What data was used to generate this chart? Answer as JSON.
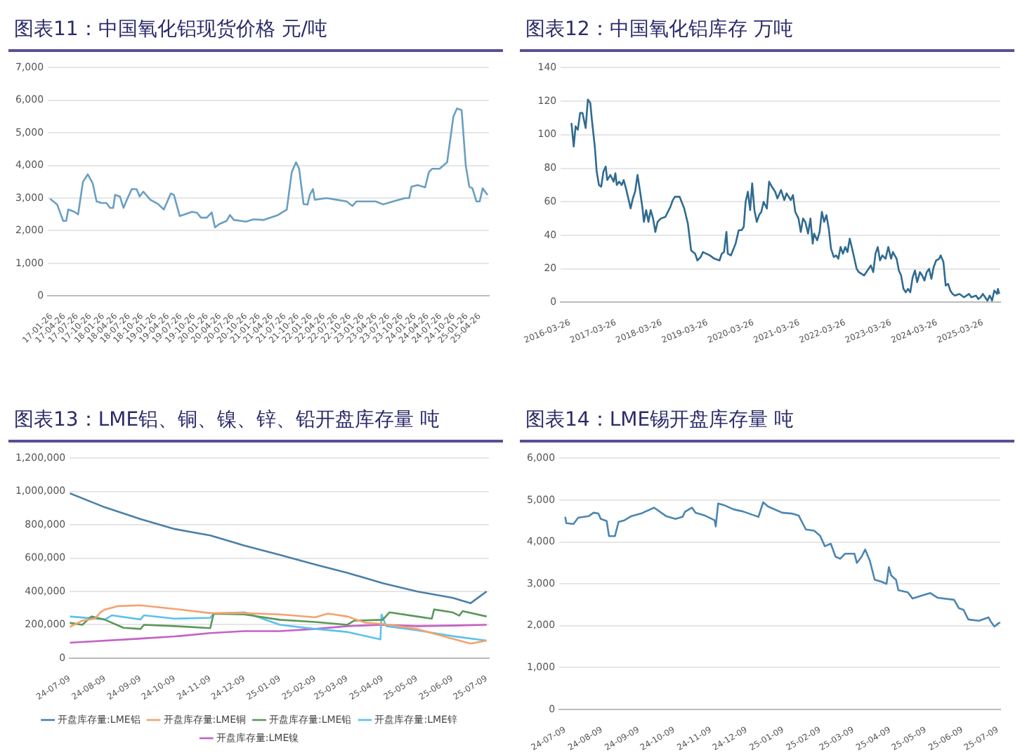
{
  "chart_data": [
    {
      "type": "line",
      "title": "图表11：中国氧化铝现货价格 元/吨",
      "grid": "y",
      "legend": false,
      "marker": "none",
      "line_style": "solid",
      "xlim": [
        "2017-01-01",
        "2025-07-01"
      ],
      "xticks": [
        {
          "value": "2017-01-26",
          "label": "17-01-26"
        },
        {
          "value": "2017-04-26",
          "label": "17-04-26"
        },
        {
          "value": "2017-07-26",
          "label": "17-07-26"
        },
        {
          "value": "2017-10-26",
          "label": "17-10-26"
        },
        {
          "value": "2018-01-26",
          "label": "18-01-26"
        },
        {
          "value": "2018-04-26",
          "label": "18-04-26"
        },
        {
          "value": "2018-07-26",
          "label": "18-07-26"
        },
        {
          "value": "2018-10-26",
          "label": "18-10-26"
        },
        {
          "value": "2019-01-26",
          "label": "19-01-26"
        },
        {
          "value": "2019-04-26",
          "label": "19-04-26"
        },
        {
          "value": "2019-07-26",
          "label": "19-07-26"
        },
        {
          "value": "2019-10-26",
          "label": "19-10-26"
        },
        {
          "value": "2020-01-26",
          "label": "20-01-26"
        },
        {
          "value": "2020-04-26",
          "label": "20-04-26"
        },
        {
          "value": "2020-07-26",
          "label": "20-07-26"
        },
        {
          "value": "2020-10-26",
          "label": "20-10-26"
        },
        {
          "value": "2021-01-26",
          "label": "21-01-26"
        },
        {
          "value": "2021-04-26",
          "label": "21-04-26"
        },
        {
          "value": "2021-07-26",
          "label": "21-07-26"
        },
        {
          "value": "2021-10-26",
          "label": "21-10-26"
        },
        {
          "value": "2022-01-26",
          "label": "22-01-26"
        },
        {
          "value": "2022-04-26",
          "label": "22-04-26"
        },
        {
          "value": "2022-07-26",
          "label": "22-07-26"
        },
        {
          "value": "2022-10-26",
          "label": "22-10-26"
        },
        {
          "value": "2023-01-26",
          "label": "23-01-26"
        },
        {
          "value": "2023-04-26",
          "label": "23-04-26"
        },
        {
          "value": "2023-07-26",
          "label": "23-07-26"
        },
        {
          "value": "2023-10-26",
          "label": "23-10-26"
        },
        {
          "value": "2024-01-26",
          "label": "24-01-26"
        },
        {
          "value": "2024-04-26",
          "label": "24-04-26"
        },
        {
          "value": "2024-07-26",
          "label": "24-07-26"
        },
        {
          "value": "2024-10-26",
          "label": "24-10-26"
        },
        {
          "value": "2025-01-26",
          "label": "25-01-26"
        },
        {
          "value": "2025-04-26",
          "label": "25-04-26"
        }
      ],
      "ylim": [
        0,
        7000
      ],
      "yticks": [
        0,
        {
          "value": 1000,
          "label": "1,000"
        },
        {
          "value": 2000,
          "label": "2,000"
        },
        {
          "value": 3000,
          "label": "3,000"
        },
        {
          "value": 4000,
          "label": "4,000"
        },
        {
          "value": 5000,
          "label": "5,000"
        },
        {
          "value": 6000,
          "label": "6,000"
        },
        {
          "value": 7000,
          "label": "7,000"
        }
      ],
      "series": [
        {
          "color": "#6a9fc2",
          "x": [
            "2017-01-17",
            "2017-03-08",
            "2017-04-19",
            "2017-05-10",
            "2017-05-25",
            "2017-07-07",
            "2017-08-02",
            "2017-09-05",
            "2017-10-09",
            "2017-11-13",
            "2017-12-10",
            "2018-01-14",
            "2018-02-17",
            "2018-03-15",
            "2018-04-06",
            "2018-04-19",
            "2018-05-23",
            "2018-06-17",
            "2018-07-11",
            "2018-08-15",
            "2018-09-18",
            "2018-10-09",
            "2018-11-04",
            "2018-12-23",
            "2019-02-15",
            "2019-03-28",
            "2019-05-16",
            "2019-06-07",
            "2019-07-18",
            "2019-08-21",
            "2019-10-13",
            "2019-11-17",
            "2019-12-14",
            "2020-01-24",
            "2020-02-28",
            "2020-03-22",
            "2020-04-19",
            "2020-06-11",
            "2020-07-05",
            "2020-08-02",
            "2020-10-26",
            "2020-12-18",
            "2021-02-25",
            "2021-06-08",
            "2021-08-09",
            "2021-09-13",
            "2021-10-13",
            "2021-11-04",
            "2021-12-05",
            "2022-01-02",
            "2022-01-18",
            "2022-02-09",
            "2022-02-22",
            "2022-05-17",
            "2022-07-25",
            "2022-10-04",
            "2022-11-14",
            "2022-12-12",
            "2023-04-26",
            "2023-06-18",
            "2023-09-13",
            "2023-11-21",
            "2023-12-18",
            "2024-01-03",
            "2024-02-16",
            "2024-04-08",
            "2024-05-05",
            "2024-05-27",
            "2024-07-19",
            "2024-09-10",
            "2024-10-24",
            "2024-11-18",
            "2024-12-21",
            "2025-01-19",
            "2025-02-13",
            "2025-03-07",
            "2025-04-04",
            "2025-04-27",
            "2025-05-18",
            "2025-06-21"
          ],
          "values": [
            2980,
            2800,
            2300,
            2300,
            2650,
            2580,
            2500,
            3500,
            3730,
            3450,
            2900,
            2850,
            2850,
            2700,
            2700,
            3100,
            3050,
            2700,
            2950,
            3280,
            3270,
            3050,
            3200,
            2950,
            2820,
            2650,
            3140,
            3100,
            2450,
            2500,
            2580,
            2550,
            2400,
            2400,
            2560,
            2100,
            2200,
            2300,
            2480,
            2330,
            2280,
            2350,
            2330,
            2480,
            2650,
            3800,
            4100,
            3900,
            2820,
            2800,
            3100,
            3280,
            2950,
            3000,
            2950,
            2900,
            2760,
            2900,
            2900,
            2810,
            2920,
            3000,
            3000,
            3350,
            3400,
            3330,
            3800,
            3900,
            3900,
            4100,
            5500,
            5750,
            5700,
            4000,
            3350,
            3300,
            2900,
            2900,
            3300,
            3100
          ]
        }
      ]
    },
    {
      "type": "line",
      "title": "图表12：中国氧化铝库存 万吨",
      "grid": "y",
      "legend": false,
      "marker": "none",
      "line_style": "solid",
      "xlim": [
        "2016-01-12",
        "2025-08-12"
      ],
      "xticks": [
        "2016-03-26",
        "2017-03-26",
        "2018-03-26",
        "2019-03-26",
        "2020-03-26",
        "2021-03-26",
        "2022-03-26",
        "2023-03-26",
        "2024-03-26",
        "2025-03-26"
      ],
      "ylim": [
        0,
        140
      ],
      "yticks": [
        0,
        20,
        40,
        60,
        80,
        100,
        120,
        140
      ],
      "series": [
        {
          "color": "#2f6b90",
          "x": [
            "2016-04-06",
            "2016-04-24",
            "2016-05-09",
            "2016-05-27",
            "2016-06-14",
            "2016-07-03",
            "2016-07-28",
            "2016-08-15",
            "2016-09-03",
            "2016-09-17",
            "2016-10-09",
            "2016-10-24",
            "2016-11-11",
            "2016-11-29",
            "2016-12-17",
            "2017-01-04",
            "2017-01-16",
            "2017-02-10",
            "2017-03-08",
            "2017-03-22",
            "2017-04-02",
            "2017-04-21",
            "2017-05-12",
            "2017-05-27",
            "2017-06-14",
            "2017-07-03",
            "2017-07-21",
            "2017-08-08",
            "2017-08-26",
            "2017-09-14",
            "2017-10-05",
            "2017-10-24",
            "2017-11-04",
            "2017-11-22",
            "2017-12-10",
            "2017-12-28",
            "2018-01-16",
            "2018-02-03",
            "2018-02-21",
            "2018-03-19",
            "2018-04-24",
            "2018-06-03",
            "2018-06-22",
            "2018-07-10",
            "2018-08-15",
            "2018-09-21",
            "2018-10-20",
            "2018-11-15",
            "2018-12-17",
            "2019-01-04",
            "2019-01-30",
            "2019-02-17",
            "2019-04-13",
            "2019-05-20",
            "2019-06-29",
            "2019-07-17",
            "2019-08-04",
            "2019-08-23",
            "2019-09-03",
            "2019-09-28",
            "2019-11-04",
            "2019-11-29",
            "2019-12-21",
            "2020-01-08",
            "2020-01-23",
            "2020-02-10",
            "2020-02-28",
            "2020-03-15",
            "2020-04-02",
            "2020-04-21",
            "2020-05-09",
            "2020-05-27",
            "2020-06-14",
            "2020-07-10",
            "2020-07-28",
            "2020-08-19",
            "2020-09-14",
            "2020-10-02",
            "2020-10-31",
            "2020-11-26",
            "2020-12-14",
            "2021-01-16",
            "2021-02-03",
            "2021-02-21",
            "2021-03-19",
            "2021-04-06",
            "2021-04-24",
            "2021-05-12",
            "2021-06-03",
            "2021-06-22",
            "2021-07-10",
            "2021-07-21",
            "2021-08-15",
            "2021-09-03",
            "2021-09-21",
            "2021-10-09",
            "2021-10-27",
            "2021-11-15",
            "2021-12-03",
            "2021-12-25",
            "2022-01-12",
            "2022-01-30",
            "2022-02-17",
            "2022-03-08",
            "2022-03-26",
            "2022-04-13",
            "2022-05-01",
            "2022-05-20",
            "2022-06-25",
            "2022-07-13",
            "2022-08-23",
            "2022-09-28",
            "2022-10-16",
            "2022-11-04",
            "2022-11-22",
            "2022-12-10",
            "2022-12-28",
            "2023-01-16",
            "2023-02-10",
            "2023-03-04",
            "2023-03-26",
            "2023-04-10",
            "2023-05-09",
            "2023-05-27",
            "2023-06-14",
            "2023-07-03",
            "2023-07-21",
            "2023-08-08",
            "2023-08-26",
            "2023-09-14",
            "2023-10-02",
            "2023-10-20",
            "2023-11-11",
            "2023-11-29",
            "2023-12-17",
            "2024-01-04",
            "2024-01-23",
            "2024-02-10",
            "2024-02-28",
            "2024-03-19",
            "2024-04-13",
            "2024-04-24",
            "2024-05-16",
            "2024-06-03",
            "2024-06-22",
            "2024-07-10",
            "2024-07-28",
            "2024-08-15",
            "2024-09-21",
            "2024-10-27",
            "2024-12-06",
            "2024-12-25",
            "2025-01-30",
            "2025-02-17",
            "2025-03-08",
            "2025-03-26",
            "2025-04-13",
            "2025-05-01",
            "2025-05-20",
            "2025-06-07",
            "2025-06-25",
            "2025-07-17",
            "2025-07-24",
            "2025-08-04"
          ],
          "values": [
            107,
            93,
            105,
            103,
            113,
            113,
            104,
            121,
            119,
            108,
            93,
            78,
            70,
            69,
            78,
            81,
            73,
            76,
            72,
            77,
            70,
            72,
            70,
            73,
            68,
            62,
            56,
            62,
            66,
            76,
            66,
            56,
            48,
            55,
            48,
            55,
            50,
            42,
            48,
            50,
            51,
            57,
            61,
            63,
            63,
            56,
            47,
            31,
            29,
            25,
            27,
            30,
            28,
            26,
            25,
            29,
            30,
            42,
            29,
            28,
            35,
            43,
            43,
            45,
            60,
            66,
            55,
            71,
            55,
            48,
            52,
            54,
            60,
            56,
            72,
            69,
            66,
            62,
            67,
            61,
            65,
            61,
            64,
            54,
            50,
            42,
            50,
            48,
            41,
            50,
            35,
            41,
            37,
            42,
            54,
            48,
            52,
            44,
            32,
            27,
            28,
            26,
            33,
            29,
            33,
            30,
            38,
            32,
            20,
            18,
            16,
            20,
            22,
            18,
            29,
            33,
            25,
            28,
            26,
            33,
            26,
            30,
            26,
            19,
            16,
            8,
            6,
            8,
            6,
            15,
            19,
            12,
            18,
            16,
            13,
            18,
            20,
            14,
            21,
            25,
            26,
            28,
            24,
            10,
            11,
            7,
            5,
            4,
            5,
            3,
            5,
            3,
            4,
            2,
            3,
            5,
            3,
            1,
            4,
            1,
            7,
            5,
            8,
            5
          ]
        }
      ]
    },
    {
      "type": "line",
      "title": "图表13：LME铝、铜、镍、锌、铅开盘库存量 吨",
      "grid": "y",
      "legend": "bottom",
      "marker": "none",
      "line_style": "solid",
      "xlim": [
        "2024-07-09",
        "2025-07-11"
      ],
      "xticks": [
        {
          "value": "2024-07-09",
          "label": "24-07-09"
        },
        {
          "value": "2024-08-09",
          "label": "24-08-09"
        },
        {
          "value": "2024-09-09",
          "label": "24-09-09"
        },
        {
          "value": "2024-10-09",
          "label": "24-10-09"
        },
        {
          "value": "2024-11-09",
          "label": "24-11-09"
        },
        {
          "value": "2024-12-09",
          "label": "24-12-09"
        },
        {
          "value": "2025-01-09",
          "label": "25-01-09"
        },
        {
          "value": "2025-02-09",
          "label": "25-02-09"
        },
        {
          "value": "2025-03-09",
          "label": "25-03-09"
        },
        {
          "value": "2025-04-09",
          "label": "25-04-09"
        },
        {
          "value": "2025-05-09",
          "label": "25-05-09"
        },
        {
          "value": "2025-06-09",
          "label": "25-06-09"
        },
        {
          "value": "2025-07-09",
          "label": "25-07-09"
        }
      ],
      "ylim": [
        0,
        1200000
      ],
      "yticks": [
        0,
        {
          "value": 200000,
          "label": "200,000"
        },
        {
          "value": 400000,
          "label": "400,000"
        },
        {
          "value": 600000,
          "label": "600,000"
        },
        {
          "value": 800000,
          "label": "800,000"
        },
        {
          "value": 1000000,
          "label": "1,000,000"
        },
        {
          "value": 1200000,
          "label": "1,200,000"
        }
      ],
      "series": [
        {
          "name": "开盘库存量:LME铝",
          "color": "#4a80a8",
          "x": [
            "2024-07-09",
            "2024-08-09",
            "2024-09-09",
            "2024-10-09",
            "2024-11-09",
            "2024-12-09",
            "2025-01-09",
            "2025-02-09",
            "2025-03-09",
            "2025-04-09",
            "2025-05-09",
            "2025-06-09",
            "2025-06-25",
            "2025-07-03",
            "2025-07-09"
          ],
          "values": [
            990000,
            905000,
            835000,
            775000,
            737000,
            675000,
            620000,
            562000,
            512000,
            450000,
            400000,
            362000,
            330000,
            370000,
            400000
          ]
        },
        {
          "name": "开盘库存量:LME铜",
          "color": "#f4a26e",
          "x": [
            "2024-07-09",
            "2024-07-20",
            "2024-07-31",
            "2024-08-05",
            "2024-08-09",
            "2024-08-20",
            "2024-09-09",
            "2024-10-09",
            "2024-11-09",
            "2024-12-09",
            "2025-01-09",
            "2025-02-09",
            "2025-02-20",
            "2025-03-09",
            "2025-03-25",
            "2025-04-09",
            "2025-05-09",
            "2025-06-09",
            "2025-06-25",
            "2025-07-09"
          ],
          "values": [
            187000,
            225000,
            237000,
            275000,
            292000,
            312000,
            317000,
            295000,
            270000,
            270000,
            262000,
            245000,
            267000,
            250000,
            212000,
            205000,
            175000,
            117000,
            87000,
            105000
          ]
        },
        {
          "name": "开盘库存量:LME铅",
          "color": "#5a985a",
          "x": [
            "2024-07-09",
            "2024-07-20",
            "2024-07-28",
            "2024-08-09",
            "2024-08-25",
            "2024-09-09",
            "2024-09-12",
            "2024-10-09",
            "2024-11-09",
            "2024-11-12",
            "2024-12-09",
            "2025-01-09",
            "2025-02-09",
            "2025-03-09",
            "2025-03-15",
            "2025-04-09",
            "2025-04-15",
            "2025-05-09",
            "2025-05-22",
            "2025-05-24",
            "2025-06-09",
            "2025-06-15",
            "2025-06-18",
            "2025-07-09"
          ],
          "values": [
            212000,
            200000,
            250000,
            230000,
            182000,
            175000,
            200000,
            192000,
            180000,
            267000,
            262000,
            230000,
            217000,
            200000,
            225000,
            230000,
            275000,
            250000,
            237000,
            292000,
            275000,
            255000,
            282000,
            250000
          ]
        },
        {
          "name": "开盘库存量:LME锌",
          "color": "#5cc1ec",
          "x": [
            "2024-07-09",
            "2024-08-09",
            "2024-08-15",
            "2024-09-09",
            "2024-09-12",
            "2024-10-09",
            "2024-11-09",
            "2024-11-12",
            "2024-12-09",
            "2025-01-09",
            "2025-02-09",
            "2025-03-09",
            "2025-04-07",
            "2025-04-08",
            "2025-04-12",
            "2025-05-09",
            "2025-06-09",
            "2025-07-09"
          ],
          "values": [
            250000,
            232000,
            257000,
            232000,
            257000,
            237000,
            242000,
            267000,
            275000,
            200000,
            175000,
            157000,
            112000,
            262000,
            192000,
            167000,
            132000,
            105000
          ]
        },
        {
          "name": "开盘库存量:LME镍",
          "color": "#c462c4",
          "x": [
            "2024-07-09",
            "2024-09-09",
            "2024-10-09",
            "2024-11-09",
            "2024-12-09",
            "2025-01-09",
            "2025-02-09",
            "2025-03-09",
            "2025-04-09",
            "2025-05-09",
            "2025-06-09",
            "2025-07-09"
          ],
          "values": [
            92000,
            117000,
            130000,
            150000,
            162000,
            162000,
            175000,
            192000,
            200000,
            192000,
            195000,
            200000
          ]
        }
      ]
    },
    {
      "type": "line",
      "title": "图表14：LME锡开盘库存量 吨",
      "grid": "y",
      "legend": false,
      "marker": "none",
      "line_style": "solid",
      "xlim": [
        "2024-07-04",
        "2025-07-11"
      ],
      "xticks": [
        {
          "value": "2024-07-09",
          "label": "24-07-09"
        },
        {
          "value": "2024-08-09",
          "label": "24-08-09"
        },
        {
          "value": "2024-09-09",
          "label": "24-09-09"
        },
        {
          "value": "2024-10-09",
          "label": "24-10-09"
        },
        {
          "value": "2024-11-09",
          "label": "24-11-09"
        },
        {
          "value": "2024-12-09",
          "label": "24-12-09"
        },
        {
          "value": "2025-01-09",
          "label": "25-01-09"
        },
        {
          "value": "2025-02-09",
          "label": "25-02-09"
        },
        {
          "value": "2025-03-09",
          "label": "25-03-09"
        },
        {
          "value": "2025-04-09",
          "label": "25-04-09"
        },
        {
          "value": "2025-05-09",
          "label": "25-05-09"
        },
        {
          "value": "2025-06-09",
          "label": "25-06-09"
        },
        {
          "value": "2025-07-09",
          "label": "25-07-09"
        }
      ],
      "ylim": [
        0,
        6000
      ],
      "yticks": [
        0,
        {
          "value": 1000,
          "label": "1,000"
        },
        {
          "value": 2000,
          "label": "2,000"
        },
        {
          "value": 3000,
          "label": "3,000"
        },
        {
          "value": 4000,
          "label": "4,000"
        },
        {
          "value": 5000,
          "label": "5,000"
        },
        {
          "value": 6000,
          "label": "6,000"
        }
      ],
      "series": [
        {
          "color": "#4a86b2",
          "x": [
            "2024-07-09",
            "2024-07-10",
            "2024-07-16",
            "2024-07-20",
            "2024-07-29",
            "2024-08-02",
            "2024-08-06",
            "2024-08-08",
            "2024-08-13",
            "2024-08-15",
            "2024-08-20",
            "2024-08-23",
            "2024-08-28",
            "2024-09-03",
            "2024-09-11",
            "2024-09-22",
            "2024-10-02",
            "2024-10-10",
            "2024-10-16",
            "2024-10-18",
            "2024-10-24",
            "2024-10-27",
            "2024-11-04",
            "2024-11-12",
            "2024-11-13",
            "2024-11-15",
            "2024-11-20",
            "2024-11-28",
            "2024-12-06",
            "2024-12-19",
            "2024-12-23",
            "2024-12-27",
            "2025-01-08",
            "2025-01-16",
            "2025-01-22",
            "2025-01-28",
            "2025-02-04",
            "2025-02-09",
            "2025-02-13",
            "2025-02-18",
            "2025-02-22",
            "2025-02-26",
            "2025-03-02",
            "2025-03-10",
            "2025-03-12",
            "2025-03-16",
            "2025-03-19",
            "2025-03-23",
            "2025-03-27",
            "2025-04-02",
            "2025-04-06",
            "2025-04-08",
            "2025-04-10",
            "2025-04-14",
            "2025-04-16",
            "2025-04-24",
            "2025-04-28",
            "2025-05-07",
            "2025-05-13",
            "2025-05-19",
            "2025-06-02",
            "2025-06-06",
            "2025-06-10",
            "2025-06-14",
            "2025-06-23",
            "2025-07-01",
            "2025-07-03",
            "2025-07-06",
            "2025-07-09",
            "2025-07-11"
          ],
          "values": [
            4600,
            4450,
            4430,
            4580,
            4620,
            4700,
            4680,
            4550,
            4500,
            4140,
            4140,
            4480,
            4520,
            4620,
            4680,
            4820,
            4620,
            4550,
            4600,
            4720,
            4820,
            4700,
            4630,
            4520,
            4370,
            4920,
            4880,
            4780,
            4730,
            4600,
            4950,
            4850,
            4700,
            4680,
            4630,
            4300,
            4270,
            4150,
            3900,
            3960,
            3650,
            3600,
            3720,
            3720,
            3500,
            3650,
            3820,
            3550,
            3100,
            3050,
            3000,
            3400,
            3200,
            3100,
            2850,
            2800,
            2650,
            2730,
            2780,
            2670,
            2620,
            2420,
            2380,
            2150,
            2120,
            2200,
            2100,
            1980,
            2050,
            2080
          ]
        }
      ]
    }
  ]
}
